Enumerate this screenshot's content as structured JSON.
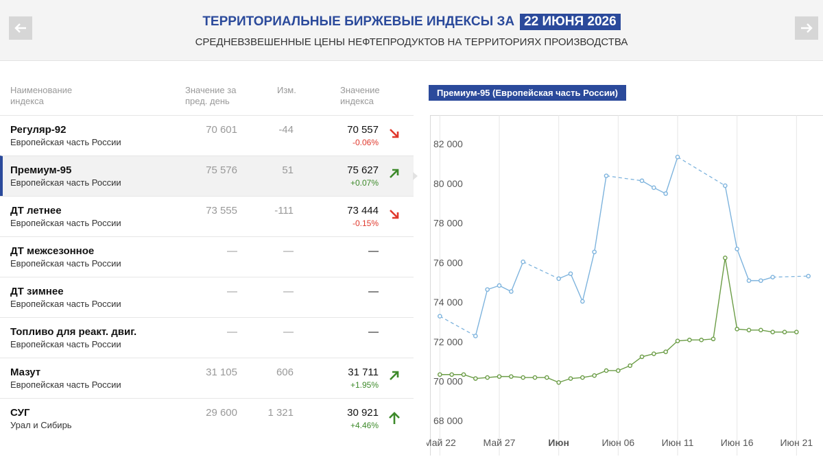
{
  "header": {
    "title": "ТЕРРИТОРИАЛЬНЫЕ БИРЖЕВЫЕ ИНДЕКСЫ ЗА",
    "date": "22 ИЮНЯ 2026",
    "subtitle": "СРЕДНЕВЗВЕШЕННЫЕ ЦЕНЫ НЕФТЕПРОДУКТОВ НА ТЕРРИТОРИЯХ ПРОИЗВОДСТВА"
  },
  "table": {
    "columns": [
      "Наименование индекса",
      "Значение за пред. день",
      "Изм.",
      "Значение индекса"
    ],
    "selected": 1,
    "rows": [
      {
        "name": "Регуляр-92",
        "region": "Европейская часть России",
        "prev": "70 601",
        "change": "-44",
        "value": "70 557",
        "pct": "-0.06%",
        "trend": "down"
      },
      {
        "name": "Премиум-95",
        "region": "Европейская часть России",
        "prev": "75 576",
        "change": "51",
        "value": "75 627",
        "pct": "+0.07%",
        "trend": "up"
      },
      {
        "name": "ДТ летнее",
        "region": "Европейская часть России",
        "prev": "73 555",
        "change": "-111",
        "value": "73 444",
        "pct": "-0.15%",
        "trend": "down"
      },
      {
        "name": "ДТ межсезонное",
        "region": "Европейская часть России",
        "prev": "—",
        "change": "—",
        "value": "—"
      },
      {
        "name": "ДТ зимнее",
        "region": "Европейская часть России",
        "prev": "—",
        "change": "—",
        "value": "—"
      },
      {
        "name": "Топливо для реакт. двиг.",
        "region": "Европейская часть России",
        "prev": "—",
        "change": "—",
        "value": "—"
      },
      {
        "name": "Мазут",
        "region": "Европейская часть России",
        "prev": "31 105",
        "change": "606",
        "value": "31 711",
        "pct": "+1.95%",
        "trend": "up"
      },
      {
        "name": "СУГ",
        "region": "Урал и Сибирь",
        "prev": "29 600",
        "change": "1 321",
        "value": "30 921",
        "pct": "+4.46%",
        "trend": "up-strong"
      }
    ]
  },
  "chart_data": {
    "type": "line",
    "title": "Премиум-95 (Европейская часть России)",
    "x": [
      "2026-05-22",
      "2026-05-23",
      "2026-05-24",
      "2026-05-25",
      "2026-05-26",
      "2026-05-27",
      "2026-05-28",
      "2026-05-29",
      "2026-05-30",
      "2026-05-31",
      "2026-06-01",
      "2026-06-02",
      "2026-06-03",
      "2026-06-04",
      "2026-06-05",
      "2026-06-06",
      "2026-06-07",
      "2026-06-08",
      "2026-06-09",
      "2026-06-10",
      "2026-06-11",
      "2026-06-12",
      "2026-06-13",
      "2026-06-14",
      "2026-06-15",
      "2026-06-16",
      "2026-06-17",
      "2026-06-18",
      "2026-06-19",
      "2026-06-20",
      "2026-06-21",
      "2026-06-22"
    ],
    "series": [
      {
        "color": "#7db3dd",
        "values": [
          73600,
          null,
          null,
          72600,
          74950,
          75150,
          74850,
          76350,
          null,
          null,
          75500,
          75750,
          74350,
          76850,
          80700,
          null,
          null,
          80450,
          80100,
          79800,
          81650,
          null,
          null,
          null,
          80200,
          77000,
          75400,
          75400,
          75576,
          null,
          null,
          75627
        ]
      },
      {
        "color": "#6a9c45",
        "values": [
          70650,
          70650,
          70650,
          70450,
          70500,
          70550,
          70550,
          70500,
          70500,
          70500,
          70250,
          70450,
          70500,
          70600,
          70850,
          70850,
          71100,
          71550,
          71700,
          71800,
          72350,
          72400,
          72400,
          72450,
          76550,
          72950,
          72900,
          72900,
          72800,
          72800,
          72800,
          null
        ]
      }
    ],
    "xlim": [
      "2026-05-21",
      "2026-06-23"
    ],
    "xticks": [
      {
        "value": "2026-05-22",
        "label": "Май 22"
      },
      {
        "value": "2026-05-27",
        "label": "Май 27"
      },
      {
        "value": "2026-06-01",
        "label": "Июн",
        "bold": true
      },
      {
        "value": "2026-06-06",
        "label": "Июн 06"
      },
      {
        "value": "2026-06-11",
        "label": "Июн 11"
      },
      {
        "value": "2026-06-16",
        "label": "Июн 16"
      },
      {
        "value": "2026-06-21",
        "label": "Июн 21"
      }
    ],
    "ylim": [
      66900,
      83770
    ],
    "yticks": [
      {
        "value": 68000,
        "label": "68 000"
      },
      {
        "value": 70000,
        "label": "70 000"
      },
      {
        "value": 72000,
        "label": "72 000"
      },
      {
        "value": 74000,
        "label": "74 000"
      },
      {
        "value": 76000,
        "label": "76 000"
      },
      {
        "value": 78000,
        "label": "78 000"
      },
      {
        "value": 80000,
        "label": "80 000"
      },
      {
        "value": 82000,
        "label": "82 000"
      }
    ],
    "grid": "x"
  }
}
